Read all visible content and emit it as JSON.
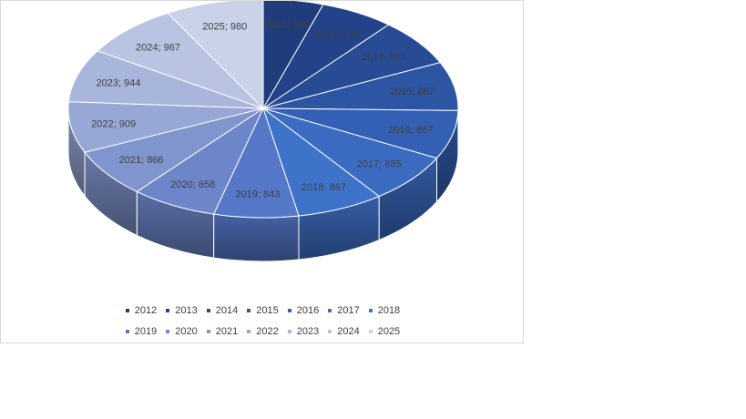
{
  "chart_data": {
    "type": "pie",
    "title": "",
    "categories": [
      "2012",
      "2013",
      "2014",
      "2015",
      "2016",
      "2017",
      "2018",
      "2019",
      "2020",
      "2021",
      "2022",
      "2023",
      "2024",
      "2025"
    ],
    "values": [
      599,
      739,
      841,
      867,
      867,
      885,
      867,
      843,
      858,
      866,
      909,
      944,
      967,
      980
    ],
    "labels": [
      "2012; 599",
      "2013; 739",
      "2014; 841",
      "2015; 867",
      "2016; 867",
      "2017; 885",
      "2018; 867",
      "2019; 843",
      "2020; 858",
      "2021; 866",
      "2022; 909",
      "2023; 944",
      "2024; 967",
      "2025; 980"
    ],
    "colors": [
      "#1f3d7a",
      "#23428a",
      "#284b96",
      "#2c55a3",
      "#3360b4",
      "#3b6cc2",
      "#3f73c9",
      "#5578c9",
      "#6d86c9",
      "#8094cd",
      "#97a8d6",
      "#a8b6dc",
      "#b9c4e2",
      "#c9d2e9"
    ],
    "legend_position": "bottom",
    "style": "3d-pie"
  }
}
